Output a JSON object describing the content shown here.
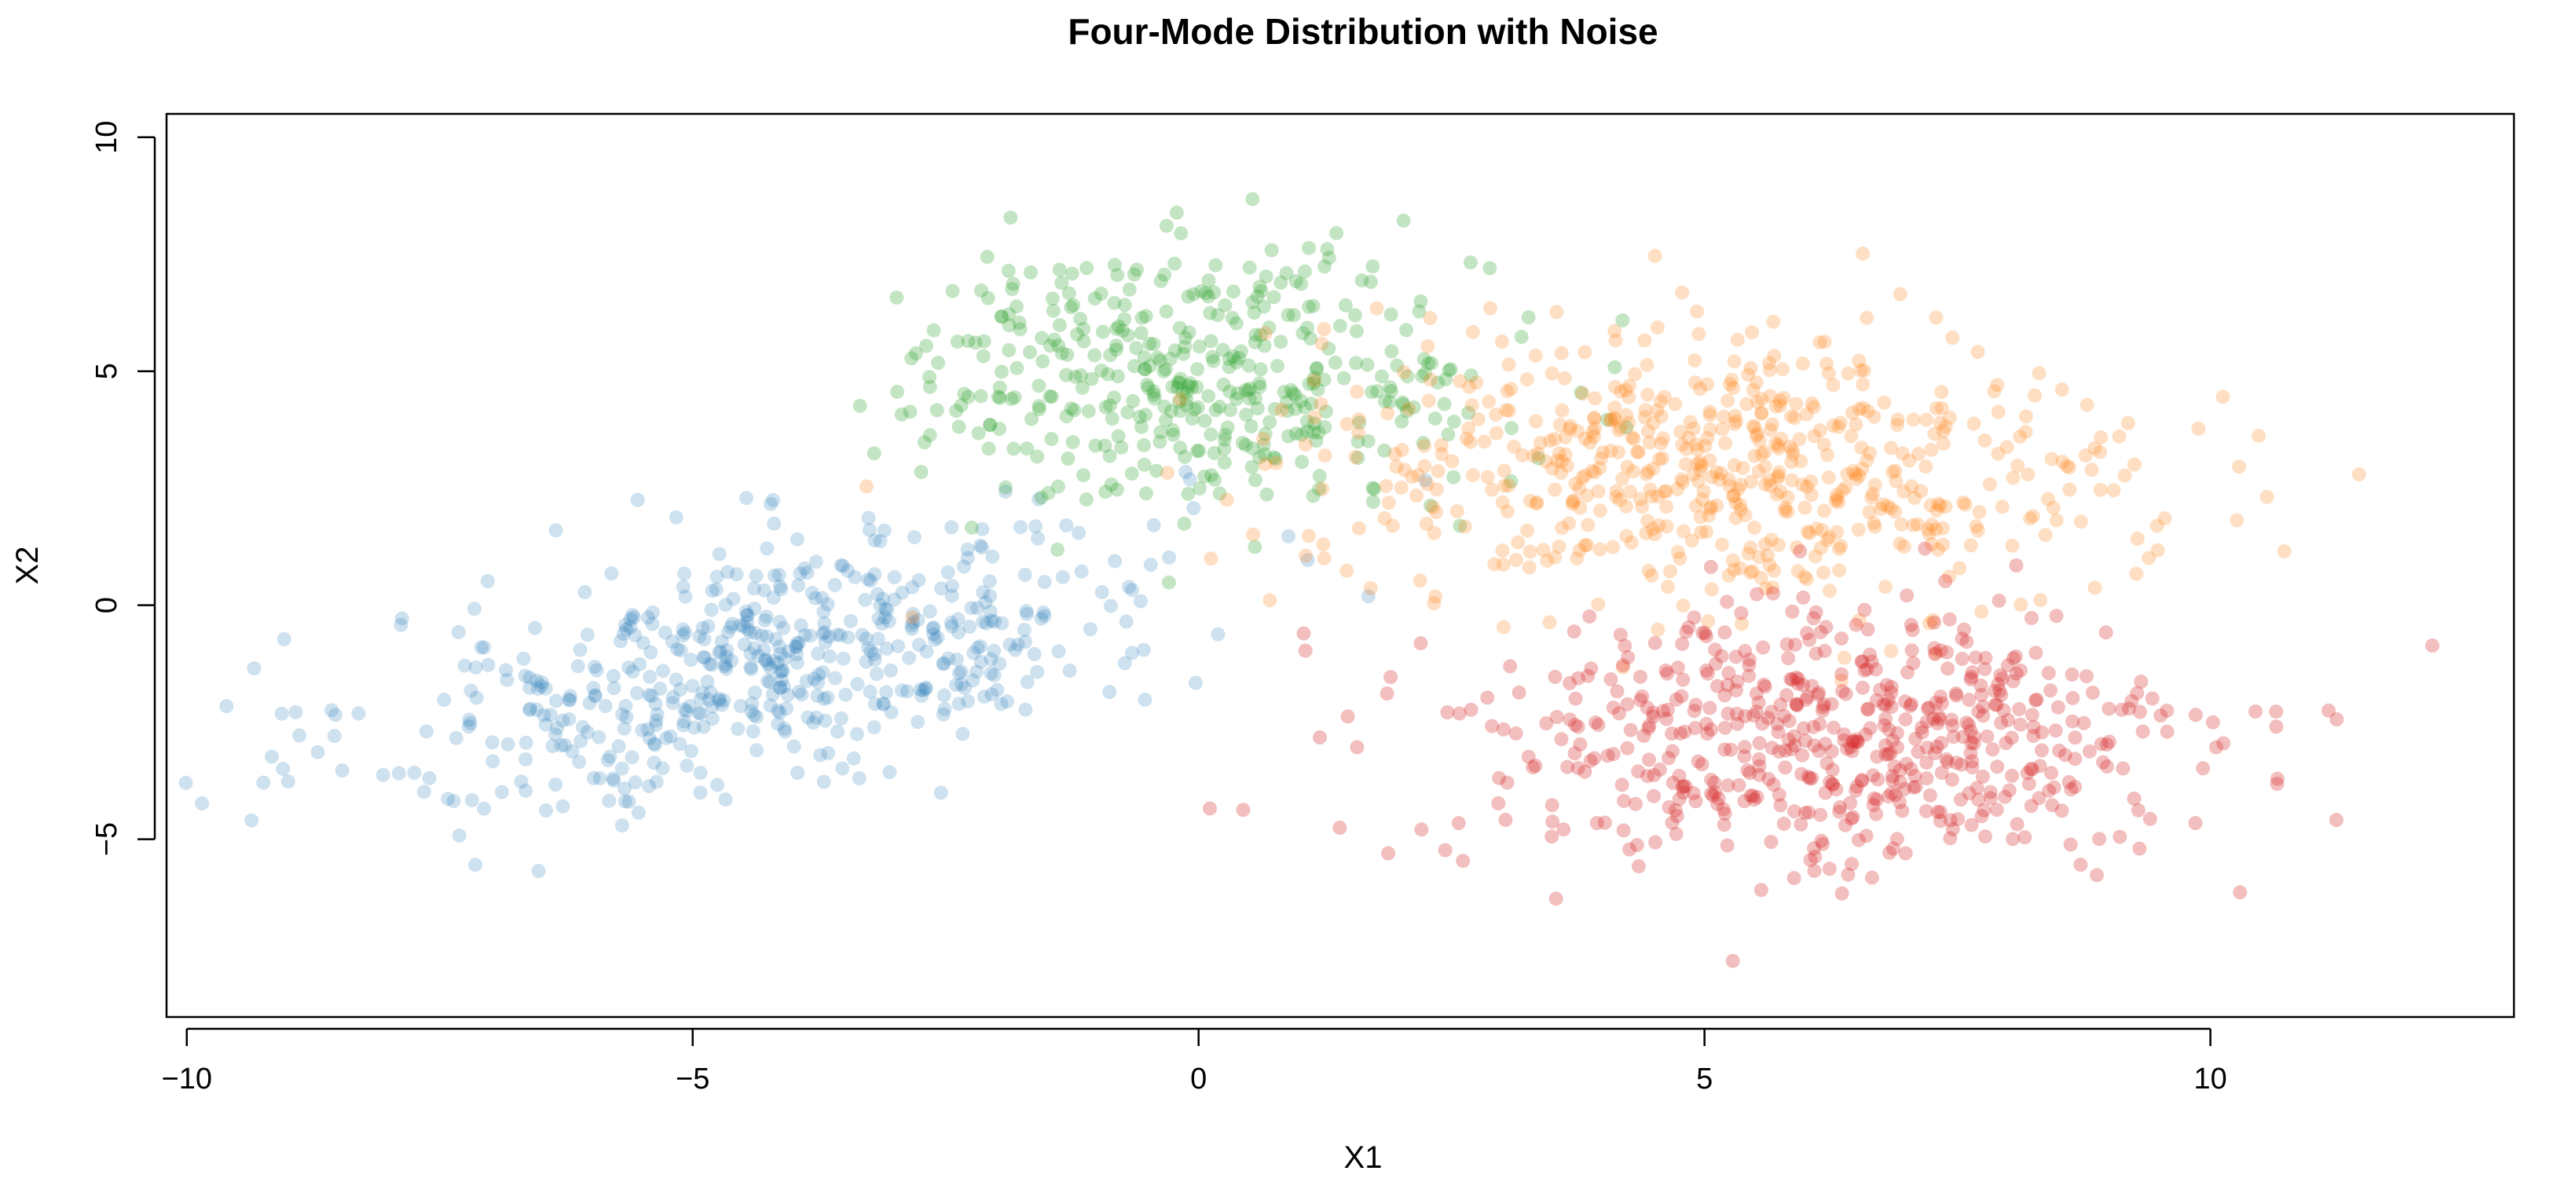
{
  "chart_data": {
    "type": "scatter",
    "title": "Four-Mode Distribution with Noise",
    "xlabel": "X1",
    "ylabel": "X2",
    "xlim": [
      -10.2,
      13.0
    ],
    "ylim": [
      -8.8,
      10.5
    ],
    "x_ticks": [
      -10,
      -5,
      0,
      5,
      10
    ],
    "y_ticks": [
      -5,
      0,
      5,
      10
    ],
    "x_tick_labels": [
      "−10",
      "−5",
      "0",
      "5",
      "10"
    ],
    "y_tick_labels": [
      "−5",
      "0",
      "5",
      "10"
    ],
    "grid": false,
    "legend": "none",
    "clusters": [
      {
        "color": "#1f77b4",
        "opacity": 0.22,
        "count": 560,
        "center": [
          -4.2,
          -1.2
        ],
        "sd": [
          2.0,
          1.6
        ],
        "correlation": 0.55
      },
      {
        "color": "#2ca02c",
        "opacity": 0.28,
        "count": 430,
        "center": [
          0.0,
          4.9
        ],
        "sd": [
          1.45,
          1.35
        ],
        "correlation": -0.05
      },
      {
        "color": "#ff7f0e",
        "opacity": 0.25,
        "count": 620,
        "center": [
          5.2,
          2.9
        ],
        "sd": [
          2.05,
          1.45
        ],
        "correlation": -0.15
      },
      {
        "color": "#d62728",
        "opacity": 0.3,
        "count": 600,
        "center": [
          6.2,
          -2.9
        ],
        "sd": [
          1.9,
          1.45
        ],
        "correlation": 0.0
      }
    ]
  }
}
